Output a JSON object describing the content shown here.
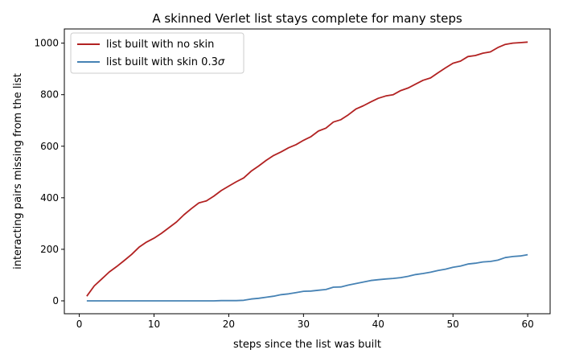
{
  "chart_data": {
    "type": "line",
    "title": "A skinned Verlet list stays complete for many steps",
    "xlabel": "steps since the list was built",
    "ylabel": "interacting pairs missing from the list",
    "xlim": [
      -2,
      63
    ],
    "ylim": [
      -50,
      1055
    ],
    "xticks": [
      0,
      10,
      20,
      30,
      40,
      50,
      60
    ],
    "yticks": [
      0,
      200,
      400,
      600,
      800,
      1000
    ],
    "grid": false,
    "legend_position": "upper-left",
    "x": [
      1,
      2,
      3,
      4,
      5,
      6,
      7,
      8,
      9,
      10,
      11,
      12,
      13,
      14,
      15,
      16,
      17,
      18,
      19,
      20,
      21,
      22,
      23,
      24,
      25,
      26,
      27,
      28,
      29,
      30,
      31,
      32,
      33,
      34,
      35,
      36,
      37,
      38,
      39,
      40,
      41,
      42,
      43,
      44,
      45,
      46,
      47,
      48,
      49,
      50,
      51,
      52,
      53,
      54,
      55,
      56,
      57,
      58,
      59,
      60
    ],
    "series": [
      {
        "name": "list built with no skin",
        "color": "#b22222",
        "values": [
          18,
          58,
          85,
          112,
          133,
          156,
          180,
          208,
          228,
          243,
          262,
          284,
          306,
          334,
          358,
          380,
          388,
          406,
          428,
          445,
          462,
          477,
          503,
          523,
          545,
          564,
          578,
          594,
          606,
          623,
          637,
          659,
          670,
          694,
          703,
          722,
          744,
          757,
          772,
          786,
          795,
          800,
          816,
          826,
          841,
          856,
          865,
          885,
          904,
          922,
          930,
          948,
          952,
          961,
          966,
          983,
          995,
          1000,
          1002,
          1004
        ]
      },
      {
        "name": "list built with skin 0.3",
        "name_symbol": "σ",
        "color": "#4682b4",
        "values": [
          0,
          0,
          0,
          0,
          0,
          0,
          0,
          0,
          0,
          0,
          0,
          0,
          0,
          0,
          0,
          0,
          0,
          0,
          1,
          1,
          1,
          2,
          7,
          10,
          14,
          18,
          24,
          27,
          32,
          37,
          38,
          41,
          44,
          53,
          54,
          61,
          67,
          73,
          79,
          82,
          85,
          87,
          90,
          95,
          102,
          106,
          111,
          118,
          123,
          130,
          135,
          143,
          146,
          151,
          153,
          158,
          168,
          172,
          174,
          179
        ]
      }
    ]
  }
}
